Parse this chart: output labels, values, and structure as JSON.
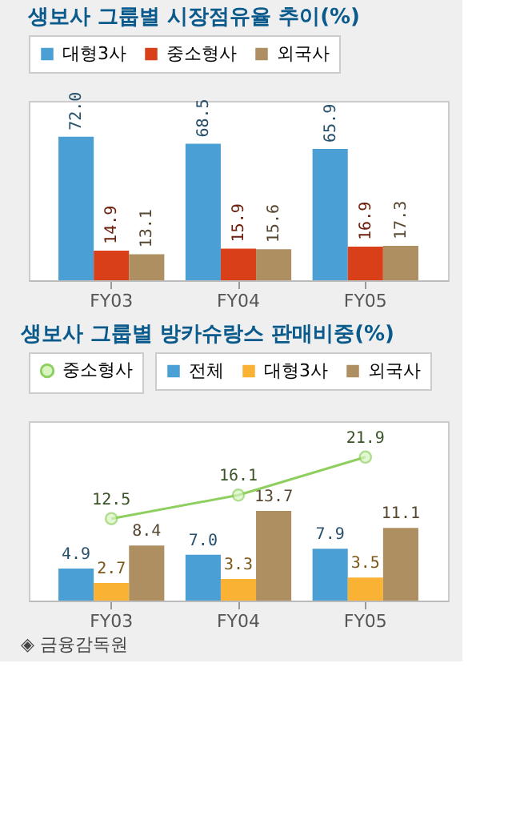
{
  "chart_data": [
    {
      "type": "bar",
      "title": "생보사 그룹별 시장점유율 추이(%)",
      "categories": [
        "FY03",
        "FY04",
        "FY05"
      ],
      "data_labels": true,
      "legend": "top",
      "grid": false,
      "series": [
        {
          "name": "대형3사",
          "color": "#4a9fd4",
          "values": [
            72.0,
            68.5,
            65.9
          ],
          "value_labels": [
            "72.0",
            "68.5",
            "65.9"
          ]
        },
        {
          "name": "중소형사",
          "color": "#d9401a",
          "values": [
            14.9,
            15.9,
            16.9
          ],
          "value_labels": [
            "14.9",
            "15.9",
            "16.9"
          ]
        },
        {
          "name": "외국사",
          "color": "#ae8f61",
          "values": [
            13.1,
            15.6,
            17.3
          ],
          "value_labels": [
            "13.1",
            "15.6",
            "17.3"
          ]
        }
      ]
    },
    {
      "type": "bar",
      "title": "생보사 그룹별 방카슈랑스 판매비중(%)",
      "categories": [
        "FY03",
        "FY04",
        "FY05"
      ],
      "data_labels": true,
      "legend": "top",
      "grid": false,
      "annotations": [
        "◈ 금융감독원"
      ],
      "series": [
        {
          "name": "전체",
          "color": "#4a9fd4",
          "values": [
            4.9,
            7.0,
            7.9
          ],
          "value_labels": [
            "4.9",
            "7.0",
            "7.9"
          ]
        },
        {
          "name": "대형3사",
          "color": "#f9b233",
          "values": [
            2.7,
            3.3,
            3.5
          ],
          "value_labels": [
            "2.7",
            "3.3",
            "3.5"
          ]
        },
        {
          "name": "외국사",
          "color": "#ae8f61",
          "values": [
            8.4,
            13.7,
            11.1
          ],
          "value_labels": [
            "8.4",
            "13.7",
            "11.1"
          ]
        },
        {
          "name": "중소형사",
          "color": "#8fcf60",
          "type": "line",
          "marker": "circle",
          "values": [
            12.5,
            16.1,
            21.9
          ],
          "value_labels": [
            "12.5",
            "16.1",
            "21.9"
          ]
        }
      ]
    }
  ]
}
